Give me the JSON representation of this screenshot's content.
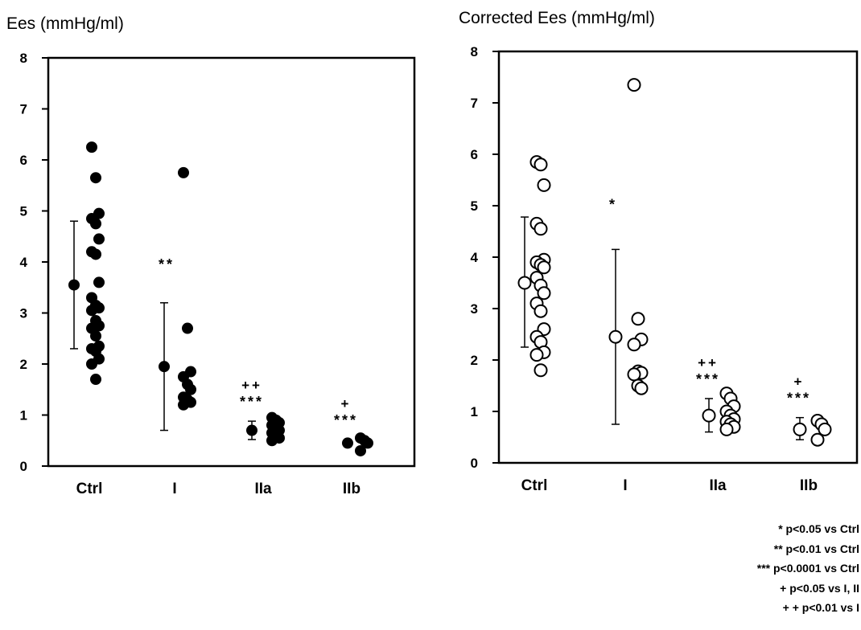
{
  "chart_data": [
    {
      "type": "scatter",
      "title": "Ees (mmHg/ml)",
      "ylim": [
        0,
        8
      ],
      "yticks": [
        0,
        1,
        2,
        3,
        4,
        5,
        6,
        7,
        8
      ],
      "categories": [
        "Ctrl",
        "I",
        "IIa",
        "IIb"
      ],
      "marker": "filled",
      "groups": [
        {
          "category": "Ctrl",
          "mean": 3.55,
          "sd_low": 2.3,
          "sd_high": 4.8,
          "points": [
            6.25,
            5.65,
            4.95,
            4.85,
            4.75,
            4.45,
            4.2,
            4.15,
            3.6,
            3.3,
            3.15,
            3.1,
            3.05,
            2.85,
            2.75,
            2.7,
            2.55,
            2.35,
            2.3,
            2.25,
            2.1,
            2.0,
            1.7
          ]
        },
        {
          "category": "I",
          "mean": 1.95,
          "sd_low": 0.7,
          "sd_high": 3.2,
          "significance": "**",
          "points": [
            5.75,
            2.7,
            1.85,
            1.75,
            1.6,
            1.5,
            1.35,
            1.3,
            1.25,
            1.2
          ]
        },
        {
          "category": "IIa",
          "mean": 0.7,
          "sd_low": 0.52,
          "sd_high": 0.88,
          "significance": "***",
          "significance2": "++",
          "points": [
            0.95,
            0.9,
            0.85,
            0.8,
            0.75,
            0.7,
            0.65,
            0.6,
            0.55,
            0.5
          ]
        },
        {
          "category": "IIb",
          "mean": 0.45,
          "sd_low": 0.38,
          "sd_high": 0.52,
          "significance": "***",
          "significance2": "+",
          "points": [
            0.55,
            0.5,
            0.45,
            0.3
          ]
        }
      ]
    },
    {
      "type": "scatter",
      "title": "Corrected Ees (mmHg/ml)",
      "ylim": [
        0,
        8
      ],
      "yticks": [
        0,
        1,
        2,
        3,
        4,
        5,
        6,
        7,
        8
      ],
      "categories": [
        "Ctrl",
        "I",
        "IIa",
        "IIb"
      ],
      "marker": "open",
      "groups": [
        {
          "category": "Ctrl",
          "mean": 3.5,
          "sd_low": 2.25,
          "sd_high": 4.78,
          "points": [
            5.85,
            5.8,
            5.4,
            4.65,
            4.55,
            3.95,
            3.9,
            3.85,
            3.8,
            3.6,
            3.45,
            3.3,
            3.1,
            2.95,
            2.6,
            2.45,
            2.35,
            2.15,
            2.1,
            1.8
          ]
        },
        {
          "category": "I",
          "mean": 2.45,
          "sd_low": 0.75,
          "sd_high": 4.15,
          "significance": "*",
          "points": [
            7.35,
            2.8,
            2.4,
            2.3,
            1.78,
            1.75,
            1.72,
            1.5,
            1.45
          ]
        },
        {
          "category": "IIa",
          "mean": 0.92,
          "sd_low": 0.6,
          "sd_high": 1.25,
          "significance": "***",
          "significance2": "++",
          "points": [
            1.35,
            1.25,
            1.1,
            1.0,
            0.92,
            0.85,
            0.8,
            0.75,
            0.7,
            0.65
          ]
        },
        {
          "category": "IIb",
          "mean": 0.65,
          "sd_low": 0.45,
          "sd_high": 0.88,
          "significance": "***",
          "significance2": "+",
          "points": [
            0.82,
            0.75,
            0.65,
            0.45
          ]
        }
      ]
    }
  ],
  "legend": [
    "* p<0.05 vs Ctrl",
    "** p<0.01 vs Ctrl",
    "*** p<0.0001 vs Ctrl",
    "+ p<0.05 vs I, II",
    "+ + p<0.01 vs I"
  ]
}
